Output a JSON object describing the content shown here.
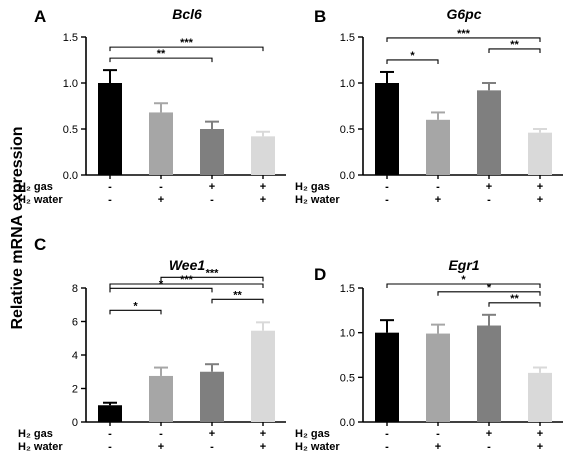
{
  "ylabel": "Relative mRNA expression",
  "treatment_rows": [
    {
      "label": "H₂ gas",
      "signs": [
        "-",
        "-",
        "+",
        "+"
      ]
    },
    {
      "label": "H₂ water",
      "signs": [
        "-",
        "+",
        "-",
        "+"
      ]
    }
  ],
  "colors": {
    "bars": [
      "#000000",
      "#a6a6a6",
      "#7f7f7f",
      "#d9d9d9"
    ]
  },
  "chart_data": [
    {
      "panel": "A",
      "type": "bar",
      "title": "Bcl6",
      "ylim": [
        0,
        1.5
      ],
      "yticks": [
        "0.0",
        "0.5",
        "1.0",
        "1.5"
      ],
      "ytick_values": [
        0,
        0.5,
        1.0,
        1.5
      ],
      "categories": [
        "1",
        "2",
        "3",
        "4"
      ],
      "values": [
        1.0,
        0.68,
        0.5,
        0.42
      ],
      "errors": [
        0.14,
        0.1,
        0.08,
        0.05
      ],
      "significance": [
        {
          "from": 1,
          "to": 3,
          "label": "**"
        },
        {
          "from": 1,
          "to": 4,
          "label": "***"
        }
      ]
    },
    {
      "panel": "B",
      "type": "bar",
      "title": "G6pc",
      "ylim": [
        0,
        1.5
      ],
      "yticks": [
        "0.0",
        "0.5",
        "1.0",
        "1.5"
      ],
      "ytick_values": [
        0,
        0.5,
        1.0,
        1.5
      ],
      "categories": [
        "1",
        "2",
        "3",
        "4"
      ],
      "values": [
        1.0,
        0.6,
        0.92,
        0.46
      ],
      "errors": [
        0.12,
        0.08,
        0.08,
        0.04
      ],
      "significance": [
        {
          "from": 1,
          "to": 2,
          "label": "*"
        },
        {
          "from": 3,
          "to": 4,
          "label": "**"
        },
        {
          "from": 1,
          "to": 4,
          "label": "***"
        }
      ]
    },
    {
      "panel": "C",
      "type": "bar",
      "title": "Wee1",
      "ylim": [
        0,
        8
      ],
      "yticks": [
        "0",
        "2",
        "4",
        "6",
        "8"
      ],
      "ytick_values": [
        0,
        2,
        4,
        6,
        8
      ],
      "categories": [
        "1",
        "2",
        "3",
        "4"
      ],
      "values": [
        1.0,
        2.75,
        3.0,
        5.45
      ],
      "errors": [
        0.15,
        0.5,
        0.45,
        0.5
      ],
      "significance": [
        {
          "from": 1,
          "to": 2,
          "label": "*"
        },
        {
          "from": 1,
          "to": 3,
          "label": "*"
        },
        {
          "from": 2,
          "to": 4,
          "label": "***"
        },
        {
          "from": 3,
          "to": 4,
          "label": "**"
        },
        {
          "from": 1,
          "to": 4,
          "label": "***"
        }
      ]
    },
    {
      "panel": "D",
      "type": "bar",
      "title": "Egr1",
      "ylim": [
        0,
        1.5
      ],
      "yticks": [
        "0.0",
        "0.5",
        "1.0",
        "1.5"
      ],
      "ytick_values": [
        0,
        0.5,
        1.0,
        1.5
      ],
      "categories": [
        "1",
        "2",
        "3",
        "4"
      ],
      "values": [
        1.0,
        0.99,
        1.08,
        0.55
      ],
      "errors": [
        0.14,
        0.1,
        0.12,
        0.06
      ],
      "significance": [
        {
          "from": 3,
          "to": 4,
          "label": "**"
        },
        {
          "from": 2,
          "to": 4,
          "label": "*"
        },
        {
          "from": 1,
          "to": 4,
          "label": "*"
        }
      ]
    }
  ]
}
